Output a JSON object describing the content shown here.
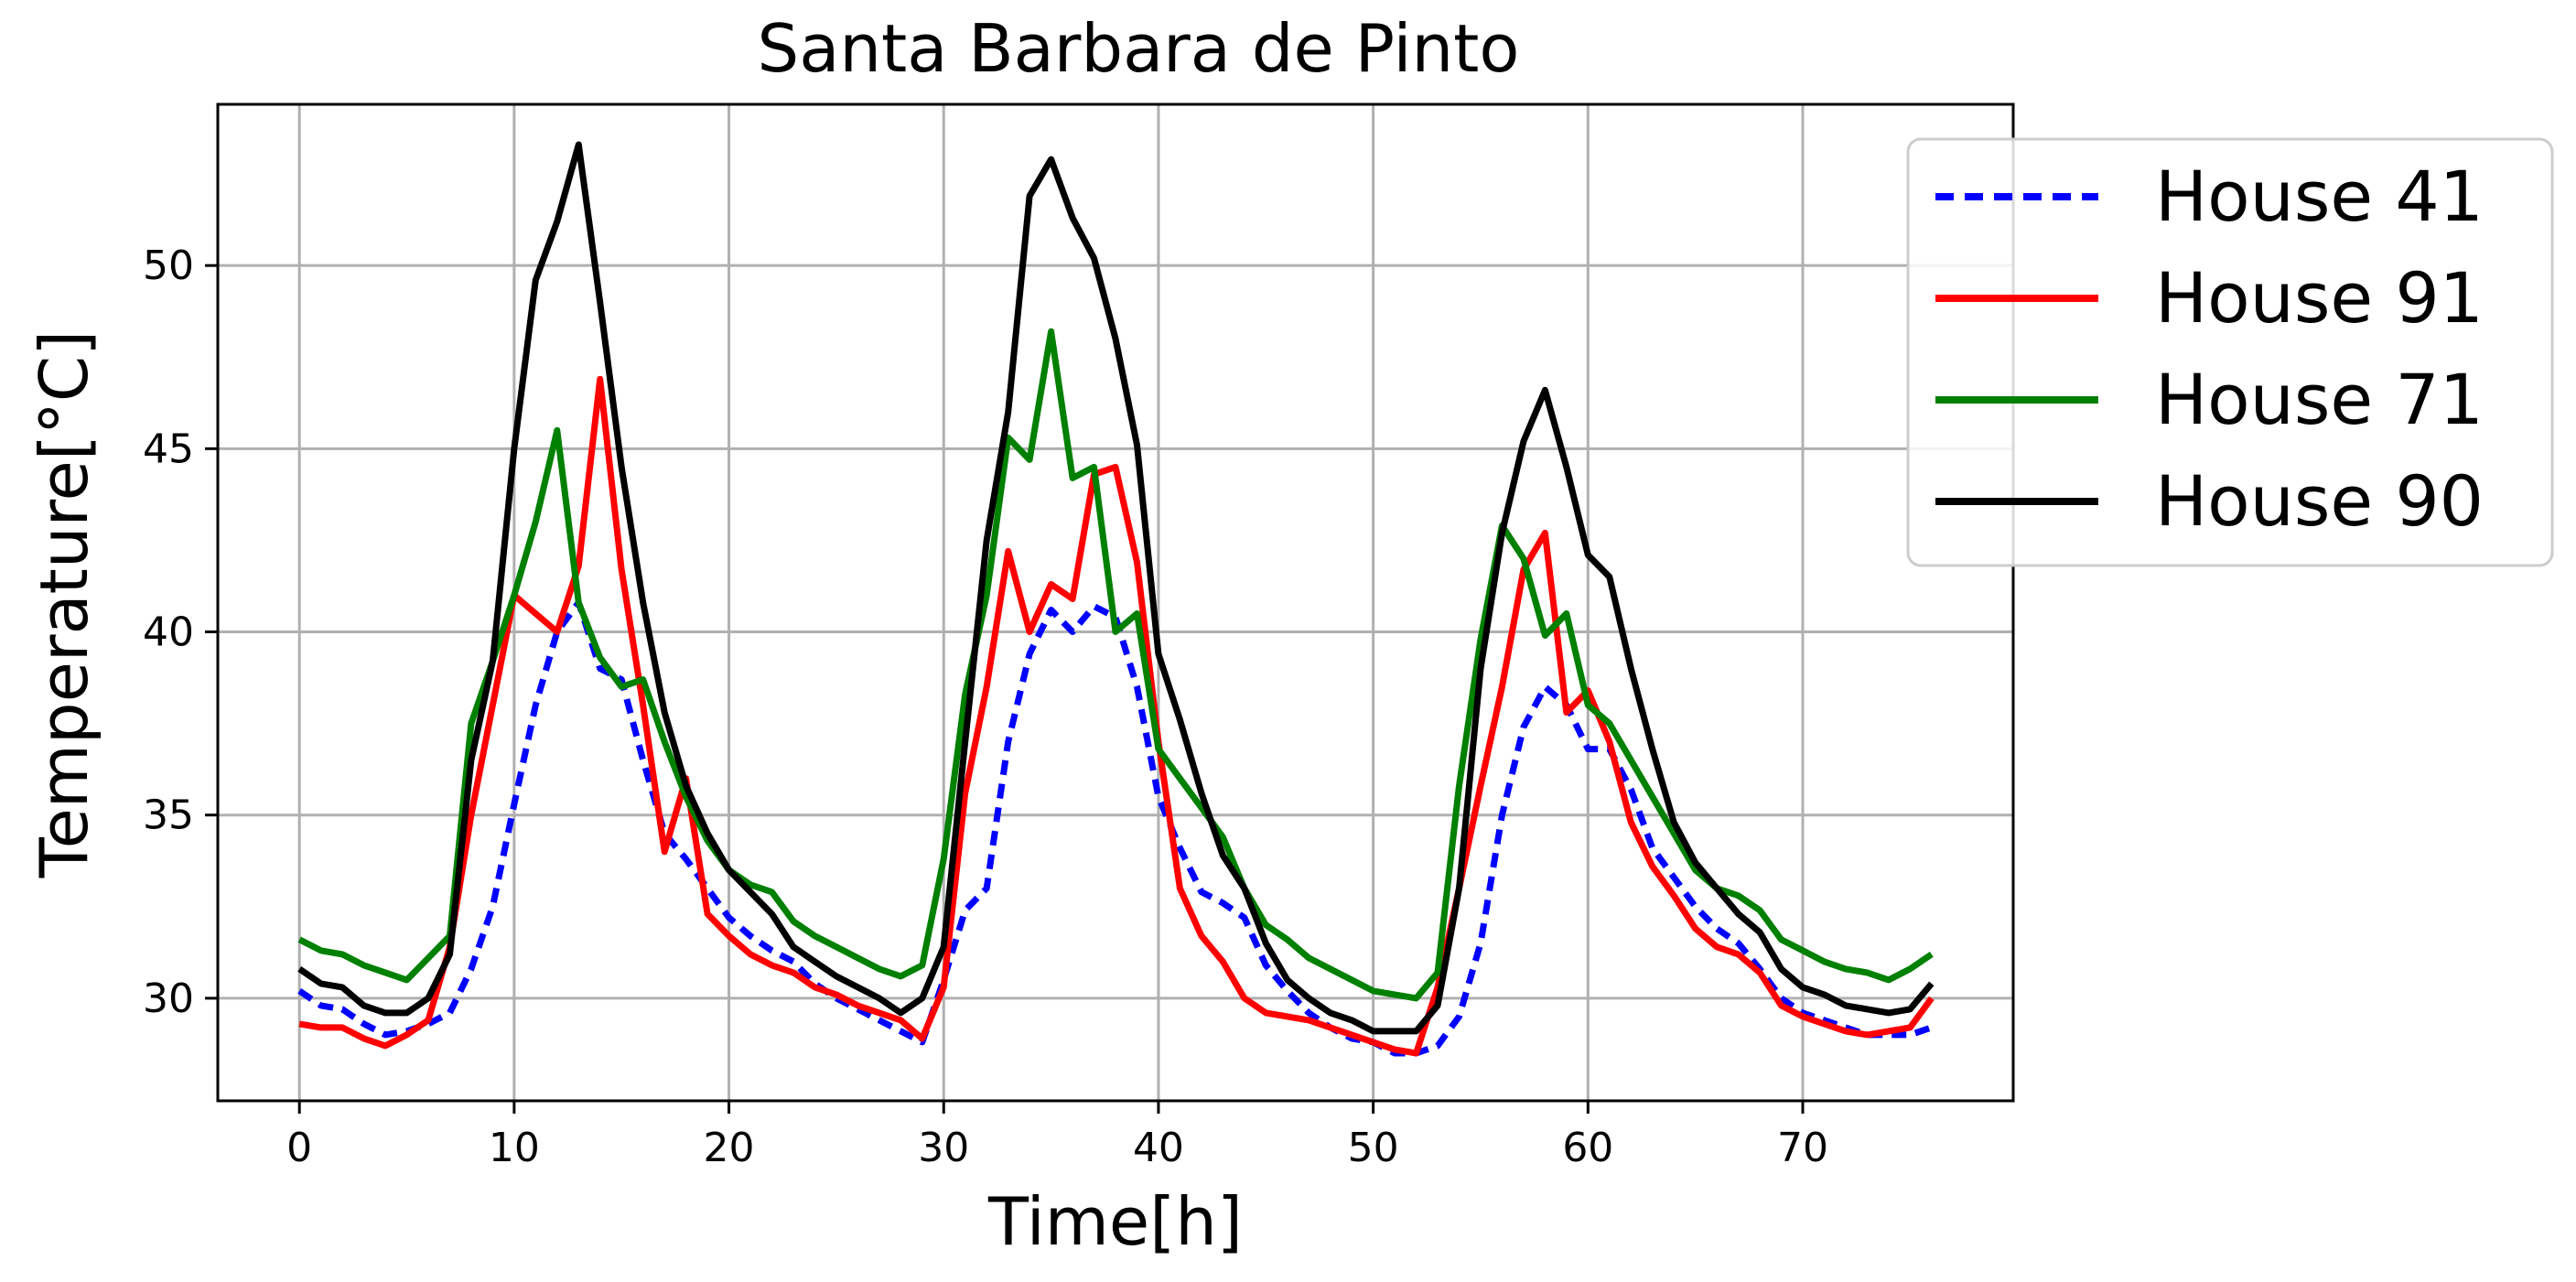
{
  "chart_data": {
    "type": "line",
    "title": "Santa Barbara de Pinto",
    "xlabel": "Time[h]",
    "ylabel": "Temperature[°C]",
    "xlim": [
      -3.8,
      79.8
    ],
    "ylim": [
      27.2,
      54.4
    ],
    "xticks": [
      0,
      10,
      20,
      30,
      40,
      50,
      60,
      70
    ],
    "yticks": [
      30,
      35,
      40,
      45,
      50
    ],
    "grid": true,
    "legend_position": "upper-right, outside plot area",
    "x": [
      0,
      1,
      2,
      3,
      4,
      5,
      6,
      7,
      8,
      9,
      10,
      11,
      12,
      13,
      14,
      15,
      16,
      17,
      18,
      19,
      20,
      21,
      22,
      23,
      24,
      25,
      26,
      27,
      28,
      29,
      30,
      31,
      32,
      33,
      34,
      35,
      36,
      37,
      38,
      39,
      40,
      41,
      42,
      43,
      44,
      45,
      46,
      47,
      48,
      49,
      50,
      51,
      52,
      53,
      54,
      55,
      56,
      57,
      58,
      59,
      60,
      61,
      62,
      63,
      64,
      65,
      66,
      67,
      68,
      69,
      70,
      71,
      72,
      73,
      74,
      75,
      76
    ],
    "series": [
      {
        "name": "House 41",
        "color": "#0000ff",
        "style": "dashed",
        "values": [
          30.2,
          29.8,
          29.7,
          29.3,
          29.0,
          29.1,
          29.3,
          29.6,
          30.8,
          32.5,
          35.3,
          38.0,
          40.0,
          40.8,
          39.0,
          38.7,
          36.5,
          34.5,
          33.8,
          33.0,
          32.2,
          31.7,
          31.3,
          31.0,
          30.4,
          30.0,
          29.7,
          29.4,
          29.1,
          28.8,
          30.5,
          32.4,
          33.0,
          37.0,
          39.4,
          40.6,
          40.0,
          40.7,
          40.4,
          38.5,
          35.5,
          34.1,
          32.9,
          32.6,
          32.2,
          30.9,
          30.2,
          29.6,
          29.2,
          28.9,
          28.8,
          28.5,
          28.5,
          28.7,
          29.5,
          31.5,
          35.0,
          37.4,
          38.5,
          38.0,
          36.8,
          36.8,
          35.7,
          34.1,
          33.3,
          32.5,
          31.9,
          31.5,
          30.8,
          30.0,
          29.6,
          29.4,
          29.2,
          29.0,
          29.0,
          29.0,
          29.2
        ]
      },
      {
        "name": "House 91",
        "color": "#ff0000",
        "style": "solid",
        "values": [
          29.3,
          29.2,
          29.2,
          28.9,
          28.7,
          29.0,
          29.4,
          31.4,
          35.0,
          38.0,
          41.0,
          40.5,
          40.0,
          41.8,
          46.9,
          41.7,
          38.0,
          34.0,
          36.0,
          32.3,
          31.7,
          31.2,
          30.9,
          30.7,
          30.3,
          30.1,
          29.8,
          29.6,
          29.4,
          28.9,
          30.3,
          35.6,
          38.5,
          42.2,
          40.0,
          41.3,
          40.9,
          44.3,
          44.5,
          41.9,
          37.0,
          33.0,
          31.7,
          31.0,
          30.0,
          29.6,
          29.5,
          29.4,
          29.2,
          29.0,
          28.8,
          28.6,
          28.5,
          30.3,
          33.0,
          35.8,
          38.5,
          41.7,
          42.7,
          37.8,
          38.4,
          37.0,
          34.8,
          33.6,
          32.8,
          31.9,
          31.4,
          31.2,
          30.7,
          29.8,
          29.5,
          29.3,
          29.1,
          29.0,
          29.1,
          29.2,
          30.0
        ]
      },
      {
        "name": "House 71",
        "color": "#008000",
        "style": "solid",
        "values": [
          31.6,
          31.3,
          31.2,
          30.9,
          30.7,
          30.5,
          31.1,
          31.7,
          37.5,
          39.2,
          41.0,
          43.0,
          45.5,
          40.8,
          39.3,
          38.5,
          38.7,
          37.0,
          35.5,
          34.3,
          33.5,
          33.1,
          32.9,
          32.1,
          31.7,
          31.4,
          31.1,
          30.8,
          30.6,
          30.9,
          33.8,
          38.3,
          41.0,
          45.3,
          44.7,
          48.2,
          44.2,
          44.5,
          40.0,
          40.5,
          36.8,
          36.0,
          35.2,
          34.4,
          33.0,
          32.0,
          31.6,
          31.1,
          30.8,
          30.5,
          30.2,
          30.1,
          30.0,
          30.7,
          35.8,
          39.8,
          42.9,
          42.0,
          39.9,
          40.5,
          38.0,
          37.5,
          36.5,
          35.5,
          34.5,
          33.5,
          33.0,
          32.8,
          32.4,
          31.6,
          31.3,
          31.0,
          30.8,
          30.7,
          30.5,
          30.8,
          31.2
        ]
      },
      {
        "name": "House 90",
        "color": "#000000",
        "style": "solid",
        "values": [
          30.8,
          30.4,
          30.3,
          29.8,
          29.6,
          29.6,
          30.0,
          31.2,
          36.5,
          39.2,
          45.0,
          49.6,
          51.2,
          53.3,
          49.0,
          44.5,
          40.8,
          37.8,
          35.8,
          34.5,
          33.5,
          32.9,
          32.3,
          31.4,
          31.0,
          30.6,
          30.3,
          30.0,
          29.6,
          30.0,
          31.4,
          37.0,
          42.5,
          46.0,
          51.9,
          52.9,
          51.3,
          50.2,
          48.0,
          45.1,
          39.4,
          37.6,
          35.6,
          33.9,
          33.0,
          31.5,
          30.5,
          30.0,
          29.6,
          29.4,
          29.1,
          29.1,
          29.1,
          29.8,
          33.0,
          39.0,
          42.7,
          45.2,
          46.6,
          44.5,
          42.1,
          41.5,
          39.0,
          36.8,
          34.8,
          33.7,
          33.0,
          32.3,
          31.8,
          30.8,
          30.3,
          30.1,
          29.8,
          29.7,
          29.6,
          29.7,
          30.4
        ]
      }
    ]
  }
}
